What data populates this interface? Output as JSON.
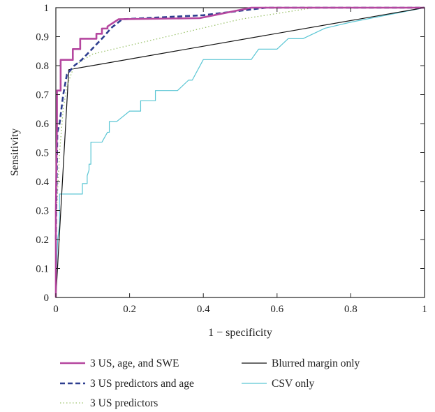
{
  "chart_data": {
    "type": "line",
    "title": "",
    "xlabel": "1 − specificity",
    "ylabel": "Sensitivity",
    "xlim": [
      0,
      1
    ],
    "ylim": [
      0,
      1
    ],
    "xticks": [
      "0",
      "0.2",
      "0.4",
      "0.6",
      "0.8",
      "1"
    ],
    "yticks": [
      "0",
      "0.1",
      "0.2",
      "0.3",
      "0.4",
      "0.5",
      "0.6",
      "0.7",
      "0.8",
      "0.9",
      "1"
    ],
    "grid": false,
    "legend_position": "bottom",
    "series": [
      {
        "name": "3 US, age, and SWE",
        "color": "#b5479f",
        "style": "solid-thick",
        "points": [
          [
            0,
            0
          ],
          [
            0,
            0.3
          ],
          [
            0.003,
            0.6
          ],
          [
            0.003,
            0.714
          ],
          [
            0.013,
            0.714
          ],
          [
            0.013,
            0.82
          ],
          [
            0.046,
            0.82
          ],
          [
            0.046,
            0.857
          ],
          [
            0.066,
            0.857
          ],
          [
            0.066,
            0.893
          ],
          [
            0.11,
            0.893
          ],
          [
            0.11,
            0.91
          ],
          [
            0.125,
            0.91
          ],
          [
            0.125,
            0.928
          ],
          [
            0.14,
            0.928
          ],
          [
            0.14,
            0.935
          ],
          [
            0.17,
            0.96
          ],
          [
            0.39,
            0.964
          ],
          [
            0.53,
            1
          ],
          [
            1,
            1
          ]
        ]
      },
      {
        "name": "3 US predictors and age",
        "color": "#2d3e8f",
        "style": "dashed",
        "points": [
          [
            0,
            0.2
          ],
          [
            0.004,
            0.57
          ],
          [
            0.01,
            0.6
          ],
          [
            0.02,
            0.7
          ],
          [
            0.03,
            0.77
          ],
          [
            0.05,
            0.8
          ],
          [
            0.07,
            0.82
          ],
          [
            0.1,
            0.86
          ],
          [
            0.13,
            0.9
          ],
          [
            0.15,
            0.93
          ],
          [
            0.18,
            0.96
          ],
          [
            0.4,
            0.974
          ],
          [
            0.57,
            1
          ],
          [
            1,
            1
          ]
        ]
      },
      {
        "name": "3 US predictors",
        "color": "#9ac26a",
        "style": "dotted",
        "points": [
          [
            0,
            0.25
          ],
          [
            0.01,
            0.5
          ],
          [
            0.02,
            0.65
          ],
          [
            0.03,
            0.73
          ],
          [
            0.05,
            0.8
          ],
          [
            0.1,
            0.84
          ],
          [
            0.2,
            0.87
          ],
          [
            0.3,
            0.9
          ],
          [
            0.4,
            0.93
          ],
          [
            0.5,
            0.96
          ],
          [
            0.6,
            0.98
          ],
          [
            0.7,
            1
          ],
          [
            1,
            1
          ]
        ]
      },
      {
        "name": "Blurred margin only",
        "color": "#111111",
        "style": "solid",
        "points": [
          [
            0,
            0
          ],
          [
            0.035,
            0.786
          ],
          [
            1,
            1
          ]
        ]
      },
      {
        "name": "CSV only",
        "color": "#5ac6d4",
        "style": "solid",
        "points": [
          [
            0,
            0
          ],
          [
            0,
            0.04
          ],
          [
            0.005,
            0.2
          ],
          [
            0.01,
            0.25
          ],
          [
            0.01,
            0.357
          ],
          [
            0.072,
            0.357
          ],
          [
            0.072,
            0.393
          ],
          [
            0.085,
            0.393
          ],
          [
            0.085,
            0.42
          ],
          [
            0.09,
            0.44
          ],
          [
            0.09,
            0.46
          ],
          [
            0.095,
            0.46
          ],
          [
            0.095,
            0.536
          ],
          [
            0.125,
            0.536
          ],
          [
            0.14,
            0.57
          ],
          [
            0.145,
            0.57
          ],
          [
            0.145,
            0.607
          ],
          [
            0.165,
            0.607
          ],
          [
            0.2,
            0.643
          ],
          [
            0.23,
            0.643
          ],
          [
            0.23,
            0.679
          ],
          [
            0.27,
            0.679
          ],
          [
            0.27,
            0.714
          ],
          [
            0.33,
            0.714
          ],
          [
            0.36,
            0.75
          ],
          [
            0.37,
            0.75
          ],
          [
            0.4,
            0.821
          ],
          [
            0.53,
            0.821
          ],
          [
            0.55,
            0.857
          ],
          [
            0.6,
            0.857
          ],
          [
            0.63,
            0.893
          ],
          [
            0.67,
            0.893
          ],
          [
            0.73,
            0.929
          ],
          [
            0.8,
            0.95
          ],
          [
            1,
            1
          ]
        ]
      }
    ]
  },
  "legend": {
    "items": [
      {
        "label": "3 US, age, and SWE",
        "color": "#b5479f",
        "style": "solid-thick"
      },
      {
        "label": "3 US predictors and age",
        "color": "#2d3e8f",
        "style": "dashed"
      },
      {
        "label": "3 US predictors",
        "color": "#9ac26a",
        "style": "dotted"
      },
      {
        "label": "Blurred margin only",
        "color": "#111111",
        "style": "solid"
      },
      {
        "label": "CSV only",
        "color": "#5ac6d4",
        "style": "solid"
      }
    ]
  }
}
